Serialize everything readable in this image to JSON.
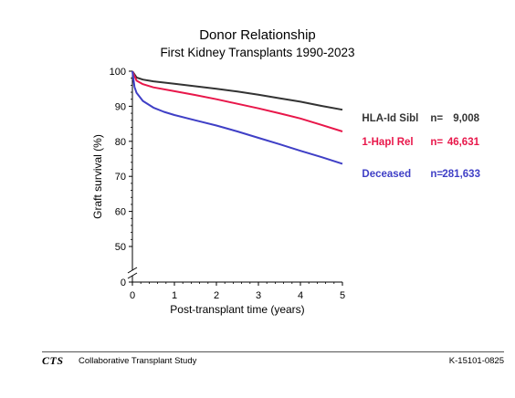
{
  "header": {
    "title": "Donor Relationship",
    "subtitle": "First Kidney Transplants 1990-2023"
  },
  "footer": {
    "logo_text": "CTS",
    "organization": "Collaborative Transplant Study",
    "code": "K-15101-0825"
  },
  "chart_data": {
    "type": "line",
    "title": "Donor Relationship",
    "subtitle": "First Kidney Transplants 1990-2023",
    "xlabel": "Post-transplant time (years)",
    "ylabel": "Graft survival (%)",
    "xlim": [
      0,
      5
    ],
    "ylim": [
      0,
      100
    ],
    "y_axis_break": true,
    "x_ticks": [
      0,
      1,
      2,
      3,
      4,
      5
    ],
    "x_tick_labels": [
      "0",
      "1",
      "2",
      "3",
      "4",
      "5"
    ],
    "y_ticks": [
      0,
      50,
      60,
      70,
      80,
      90,
      100
    ],
    "y_tick_labels": [
      "0",
      "50",
      "60",
      "70",
      "80",
      "90",
      "100"
    ],
    "grid": false,
    "legend_position": "right",
    "series": [
      {
        "name": "HLA-Id Sibl",
        "n_label": "n=",
        "n_value": "9,008",
        "color": "#333333",
        "x": [
          0,
          0.1,
          0.25,
          0.5,
          1,
          1.5,
          2,
          2.5,
          3,
          3.5,
          4,
          4.5,
          5
        ],
        "y": [
          100,
          98.2,
          97.6,
          97.1,
          96.4,
          95.7,
          95.0,
          94.2,
          93.3,
          92.3,
          91.3,
          90.1,
          89.0
        ]
      },
      {
        "name": "1-Hapl Rel",
        "n_label": "n=",
        "n_value": "46,631",
        "color": "#e8174a",
        "x": [
          0,
          0.1,
          0.25,
          0.5,
          1,
          1.5,
          2,
          2.5,
          3,
          3.5,
          4,
          4.5,
          5
        ],
        "y": [
          100,
          97.3,
          96.3,
          95.4,
          94.3,
          93.2,
          92.0,
          90.7,
          89.4,
          88.0,
          86.5,
          84.7,
          82.8
        ]
      },
      {
        "name": "Deceased",
        "n_label": "n=",
        "n_value": "281,633",
        "color": "#3f3fc6",
        "x": [
          0,
          0.05,
          0.1,
          0.25,
          0.5,
          0.75,
          1,
          1.5,
          2,
          2.5,
          3,
          3.5,
          4,
          4.5,
          5
        ],
        "y": [
          100,
          95.5,
          93.8,
          91.5,
          89.6,
          88.4,
          87.5,
          86.0,
          84.5,
          82.8,
          81.0,
          79.2,
          77.3,
          75.5,
          73.6
        ]
      }
    ]
  }
}
